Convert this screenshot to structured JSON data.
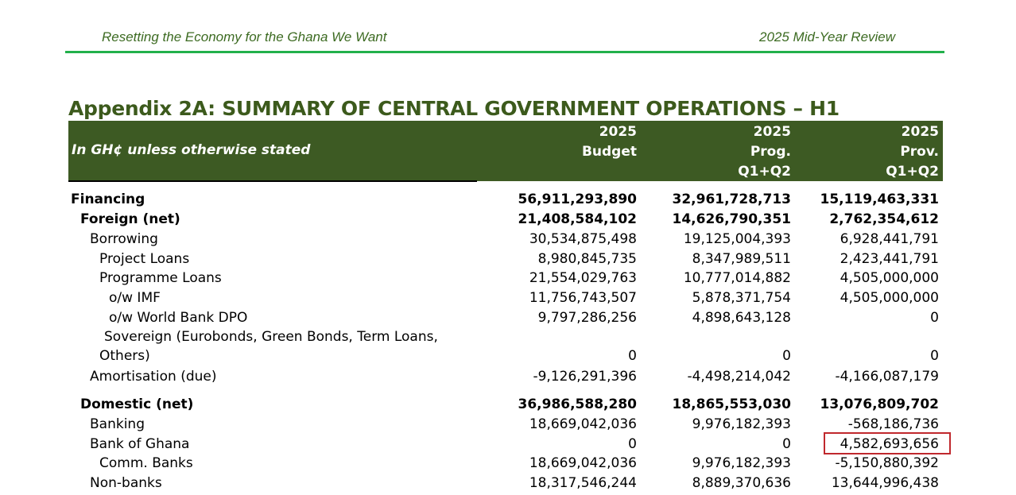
{
  "header": {
    "left": "Resetting the Economy for the Ghana We Want",
    "right": "2025 Mid-Year Review"
  },
  "title": "Appendix 2A: SUMMARY OF CENTRAL GOVERNMENT OPERATIONS – H1",
  "table": {
    "units_label": "In GH¢ unless otherwise stated",
    "columns": [
      [
        "2025",
        "Budget"
      ],
      [
        "2025",
        "Prog.",
        "Q1+Q2"
      ],
      [
        "2025",
        "Prov.",
        "Q1+Q2"
      ]
    ],
    "rows": [
      {
        "label": "Financing",
        "values": [
          "56,911,293,890",
          "32,961,728,713",
          "15,119,463,331"
        ]
      },
      {
        "label": "Foreign (net)",
        "values": [
          "21,408,584,102",
          "14,626,790,351",
          "2,762,354,612"
        ]
      },
      {
        "label": "Borrowing",
        "values": [
          "30,534,875,498",
          "19,125,004,393",
          "6,928,441,791"
        ]
      },
      {
        "label": "Project Loans",
        "values": [
          "8,980,845,735",
          "8,347,989,511",
          "2,423,441,791"
        ]
      },
      {
        "label": "Programme Loans",
        "values": [
          "21,554,029,763",
          "10,777,014,882",
          "4,505,000,000"
        ]
      },
      {
        "label": "o/w IMF",
        "values": [
          "11,756,743,507",
          "5,878,371,754",
          "4,505,000,000"
        ]
      },
      {
        "label": "o/w World Bank DPO",
        "values": [
          "9,797,286,256",
          "4,898,643,128",
          "0"
        ]
      },
      {
        "label": "Sovereign (Eurobonds, Green Bonds, Term Loans,",
        "label2": "Others)",
        "values": [
          "0",
          "0",
          "0"
        ]
      },
      {
        "label": "Amortisation (due)",
        "values": [
          "-9,126,291,396",
          "-4,498,214,042",
          "-4,166,087,179"
        ]
      },
      {
        "label": "Domestic (net)",
        "values": [
          "36,986,588,280",
          "18,865,553,030",
          "13,076,809,702"
        ]
      },
      {
        "label": "Banking",
        "values": [
          "18,669,042,036",
          "9,976,182,393",
          "-568,186,736"
        ]
      },
      {
        "label": "Bank of Ghana",
        "values": [
          "0",
          "0",
          "4,582,693,656"
        ]
      },
      {
        "label": "Comm. Banks",
        "values": [
          "18,669,042,036",
          "9,976,182,393",
          "-5,150,880,392"
        ]
      },
      {
        "label": "Non-banks",
        "values": [
          "18,317,546,244",
          "8,889,370,636",
          "13,644,996,438"
        ]
      }
    ]
  },
  "highlight_color": "#c0282d"
}
